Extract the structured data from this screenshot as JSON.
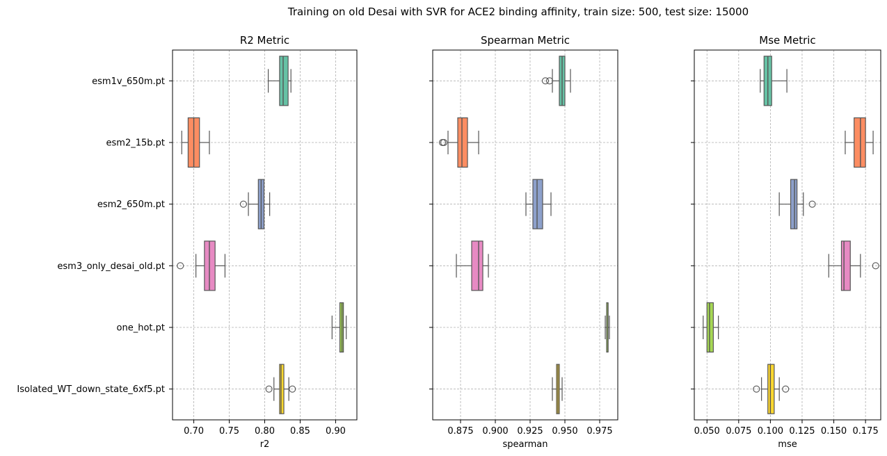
{
  "title": "Training on old Desai with SVR for ACE2 binding affinity, train size: 500, test size: 15000",
  "categories": [
    "esm1v_650m.pt",
    "esm2_15b.pt",
    "esm2_650m.pt",
    "esm3_only_desai_old.pt",
    "one_hot.pt",
    "Isolated_WT_down_state_6xf5.pt"
  ],
  "colors": [
    "#66c2a5",
    "#fc8d62",
    "#8da0cb",
    "#e78ac3",
    "#a6d854",
    "#ffd92f"
  ],
  "chart_data": [
    {
      "type": "box",
      "title": "R2 Metric",
      "xlabel": "r2",
      "ylabel": "",
      "xlim": [
        0.67,
        0.93
      ],
      "xticks": [
        0.7,
        0.75,
        0.8,
        0.85,
        0.9
      ],
      "xtick_labels": [
        "0.70",
        "0.75",
        "0.80",
        "0.85",
        "0.90"
      ],
      "grid": true,
      "boxes": [
        {
          "category": "esm1v_650m.pt",
          "whislo": 0.805,
          "q1": 0.821,
          "med": 0.826,
          "q3": 0.833,
          "whishi": 0.837,
          "fliers": []
        },
        {
          "category": "esm2_15b.pt",
          "whislo": 0.683,
          "q1": 0.692,
          "med": 0.7,
          "q3": 0.708,
          "whishi": 0.722,
          "fliers": []
        },
        {
          "category": "esm2_650m.pt",
          "whislo": 0.777,
          "q1": 0.791,
          "med": 0.795,
          "q3": 0.799,
          "whishi": 0.807,
          "fliers": [
            0.77
          ]
        },
        {
          "category": "esm3_only_desai_old.pt",
          "whislo": 0.703,
          "q1": 0.715,
          "med": 0.722,
          "q3": 0.73,
          "whishi": 0.744,
          "fliers": [
            0.681
          ]
        },
        {
          "category": "one_hot.pt",
          "whislo": 0.895,
          "q1": 0.906,
          "med": 0.909,
          "q3": 0.911,
          "whishi": 0.915,
          "fliers": []
        },
        {
          "category": "Isolated_WT_down_state_6xf5.pt",
          "whislo": 0.813,
          "q1": 0.821,
          "med": 0.823,
          "q3": 0.827,
          "whishi": 0.834,
          "fliers": [
            0.806,
            0.839
          ]
        }
      ]
    },
    {
      "type": "box",
      "title": "Spearman Metric",
      "xlabel": "spearman",
      "ylabel": "",
      "xlim": [
        0.855,
        0.988
      ],
      "xticks": [
        0.875,
        0.9,
        0.925,
        0.95,
        0.975
      ],
      "xtick_labels": [
        "0.875",
        "0.900",
        "0.925",
        "0.950",
        "0.975"
      ],
      "grid": true,
      "boxes": [
        {
          "category": "esm1v_650m.pt",
          "whislo": 0.941,
          "q1": 0.946,
          "med": 0.948,
          "q3": 0.95,
          "whishi": 0.954,
          "fliers": [
            0.936,
            0.939
          ]
        },
        {
          "category": "esm2_15b.pt",
          "whislo": 0.866,
          "q1": 0.873,
          "med": 0.876,
          "q3": 0.88,
          "whishi": 0.888,
          "fliers": [
            0.862,
            0.863
          ]
        },
        {
          "category": "esm2_650m.pt",
          "whislo": 0.922,
          "q1": 0.927,
          "med": 0.93,
          "q3": 0.934,
          "whishi": 0.94,
          "fliers": []
        },
        {
          "category": "esm3_only_desai_old.pt",
          "whislo": 0.872,
          "q1": 0.883,
          "med": 0.888,
          "q3": 0.891,
          "whishi": 0.895,
          "fliers": []
        },
        {
          "category": "one_hot.pt",
          "whislo": 0.979,
          "q1": 0.98,
          "med": 0.981,
          "q3": 0.981,
          "whishi": 0.982,
          "fliers": []
        },
        {
          "category": "Isolated_WT_down_state_6xf5.pt",
          "whislo": 0.941,
          "q1": 0.944,
          "med": 0.945,
          "q3": 0.946,
          "whishi": 0.948,
          "fliers": []
        }
      ]
    },
    {
      "type": "box",
      "title": "Mse Metric",
      "xlabel": "mse",
      "ylabel": "",
      "xlim": [
        0.04,
        0.187
      ],
      "xticks": [
        0.05,
        0.075,
        0.1,
        0.125,
        0.15,
        0.175
      ],
      "xtick_labels": [
        "0.050",
        "0.075",
        "0.100",
        "0.125",
        "0.150",
        "0.175"
      ],
      "grid": true,
      "boxes": [
        {
          "category": "esm1v_650m.pt",
          "whislo": 0.092,
          "q1": 0.095,
          "med": 0.098,
          "q3": 0.101,
          "whishi": 0.113,
          "fliers": []
        },
        {
          "category": "esm2_15b.pt",
          "whislo": 0.159,
          "q1": 0.166,
          "med": 0.171,
          "q3": 0.175,
          "whishi": 0.181,
          "fliers": []
        },
        {
          "category": "esm2_650m.pt",
          "whislo": 0.107,
          "q1": 0.116,
          "med": 0.119,
          "q3": 0.121,
          "whishi": 0.126,
          "fliers": [
            0.133
          ]
        },
        {
          "category": "esm3_only_desai_old.pt",
          "whislo": 0.146,
          "q1": 0.156,
          "med": 0.158,
          "q3": 0.163,
          "whishi": 0.171,
          "fliers": [
            0.183
          ]
        },
        {
          "category": "one_hot.pt",
          "whislo": 0.047,
          "q1": 0.05,
          "med": 0.052,
          "q3": 0.055,
          "whishi": 0.059,
          "fliers": []
        },
        {
          "category": "Isolated_WT_down_state_6xf5.pt",
          "whislo": 0.093,
          "q1": 0.098,
          "med": 0.1,
          "q3": 0.103,
          "whishi": 0.107,
          "fliers": [
            0.089,
            0.112
          ]
        }
      ]
    }
  ]
}
